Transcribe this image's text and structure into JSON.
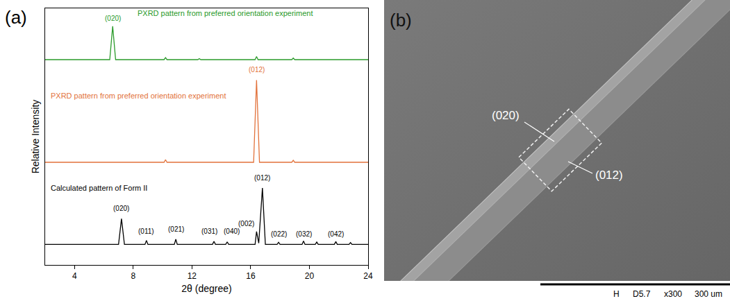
{
  "chart_data": {
    "type": "line",
    "panel_label": "(a)",
    "x_label": "2θ (degree)",
    "y_label": "Relative Intensity",
    "xlim": [
      2,
      24
    ],
    "xticks": [
      4,
      8,
      12,
      16,
      20,
      24
    ],
    "ylim": [
      0,
      100
    ],
    "tick_labels": "x",
    "grid": false,
    "series": [
      {
        "color": "#000000",
        "x": [
          2,
          7.0,
          7.2,
          7.4,
          8.8,
          8.9,
          9.0,
          10.8,
          10.9,
          11.0,
          13.4,
          13.5,
          13.6,
          14.3,
          14.4,
          14.5,
          16.3,
          16.4,
          16.55,
          16.8,
          17.0,
          17.8,
          17.9,
          18.0,
          19.5,
          19.6,
          19.7,
          20.4,
          20.5,
          20.6,
          21.7,
          21.8,
          21.9,
          22.7,
          22.8,
          22.9,
          24
        ],
        "values": [
          8,
          8,
          18,
          8,
          8,
          9.5,
          8,
          8,
          10,
          8,
          8,
          9.2,
          8,
          8,
          9,
          8,
          8,
          13,
          8.5,
          30,
          8,
          8,
          8.8,
          8,
          8,
          9.3,
          8,
          8,
          8.9,
          8,
          8,
          9.1,
          8,
          8,
          8.7,
          8,
          8
        ]
      },
      {
        "color": "#e2723b",
        "x": [
          2,
          10.1,
          10.2,
          10.3,
          16.2,
          16.4,
          16.6,
          18.8,
          18.9,
          19.0,
          24
        ],
        "values": [
          40,
          40,
          41,
          40,
          40,
          72,
          40,
          40,
          40.8,
          40,
          40
        ]
      },
      {
        "color": "#2a9a2a",
        "x": [
          2,
          6.4,
          6.6,
          6.8,
          10.1,
          10.2,
          10.3,
          12.4,
          12.5,
          12.6,
          16.3,
          16.4,
          16.5,
          18.8,
          18.9,
          19.0,
          24
        ],
        "values": [
          80,
          80,
          93,
          80,
          80,
          80.8,
          80,
          80,
          80.4,
          80,
          80,
          81.2,
          80,
          80,
          80.6,
          80,
          80
        ]
      }
    ],
    "annotations": [
      {
        "text": "PXRD pattern from preferred orientation experiment",
        "x": 8.2,
        "y": 98,
        "color": "#2a9a2a"
      },
      {
        "text": "(020)",
        "x": 6.6,
        "y": 96,
        "color": "#2a9a2a"
      },
      {
        "text": "PXRD pattern from preferred orientation experiment",
        "x": 2.3,
        "y": 66,
        "color": "#e2723b"
      },
      {
        "text": "(012)",
        "x": 16.4,
        "y": 76,
        "color": "#e2723b"
      },
      {
        "text": "Calculated pattern of Form II",
        "x": 2.3,
        "y": 30,
        "color": "#000000"
      },
      {
        "text": "(020)",
        "x": 7.2,
        "y": 22,
        "color": "#000000"
      },
      {
        "text": "(011)",
        "x": 8.9,
        "y": 13,
        "color": "#000000"
      },
      {
        "text": "(021)",
        "x": 10.9,
        "y": 14,
        "color": "#000000"
      },
      {
        "text": "(031)",
        "x": 13.2,
        "y": 13,
        "color": "#000000"
      },
      {
        "text": "(040)",
        "x": 14.7,
        "y": 13,
        "color": "#000000"
      },
      {
        "text": "(002)",
        "x": 15.7,
        "y": 16,
        "color": "#000000"
      },
      {
        "text": "(012)",
        "x": 16.8,
        "y": 34,
        "color": "#000000"
      },
      {
        "text": "(022)",
        "x": 17.9,
        "y": 12,
        "color": "#000000"
      },
      {
        "text": "(032)",
        "x": 19.6,
        "y": 12,
        "color": "#000000"
      },
      {
        "text": "(042)",
        "x": 21.8,
        "y": 12,
        "color": "#000000"
      }
    ]
  },
  "panel_b": {
    "panel_label": "(b)",
    "labels": [
      "(020)",
      "(012)"
    ],
    "scale_bar": [
      "H",
      "D5.7",
      "x300",
      "300 um"
    ]
  }
}
